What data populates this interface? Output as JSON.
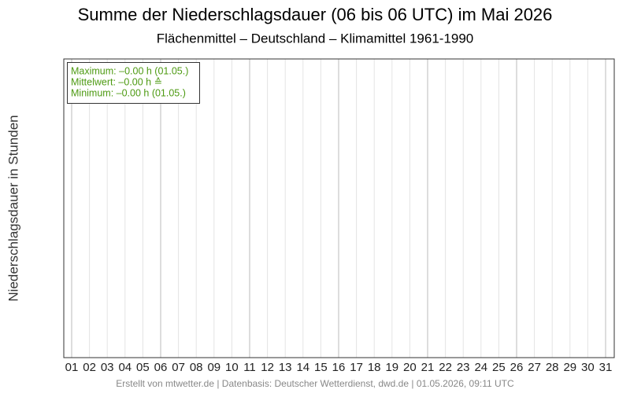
{
  "chart_data": {
    "type": "line",
    "title": "Summe der Niederschlagsdauer (06 bis 06 UTC) im Mai 2026",
    "subtitle": "Flächenmittel – Deutschland – Klimamittel 1961-1990",
    "y_label": "Niederschlagsdauer in Stunden",
    "categories": [
      "01",
      "02",
      "03",
      "04",
      "05",
      "06",
      "07",
      "08",
      "09",
      "10",
      "11",
      "12",
      "13",
      "14",
      "15",
      "16",
      "17",
      "18",
      "19",
      "20",
      "21",
      "22",
      "23",
      "24",
      "25",
      "26",
      "27",
      "28",
      "29",
      "30",
      "31"
    ],
    "series": [],
    "grid": true,
    "stats_box": [
      "Maximum:  –0.00 h  (01.05.)",
      "Mittelwert:  –0.00 h  ≙",
      "Minimum:  –0.00 h  (01.05.)"
    ],
    "stats_color": "#4d9a12",
    "footer": "Erstellt von mtwetter.de | Datenbasis: Deutscher Wetterdienst, dwd.de | 01.05.2026, 09:11 UTC"
  }
}
